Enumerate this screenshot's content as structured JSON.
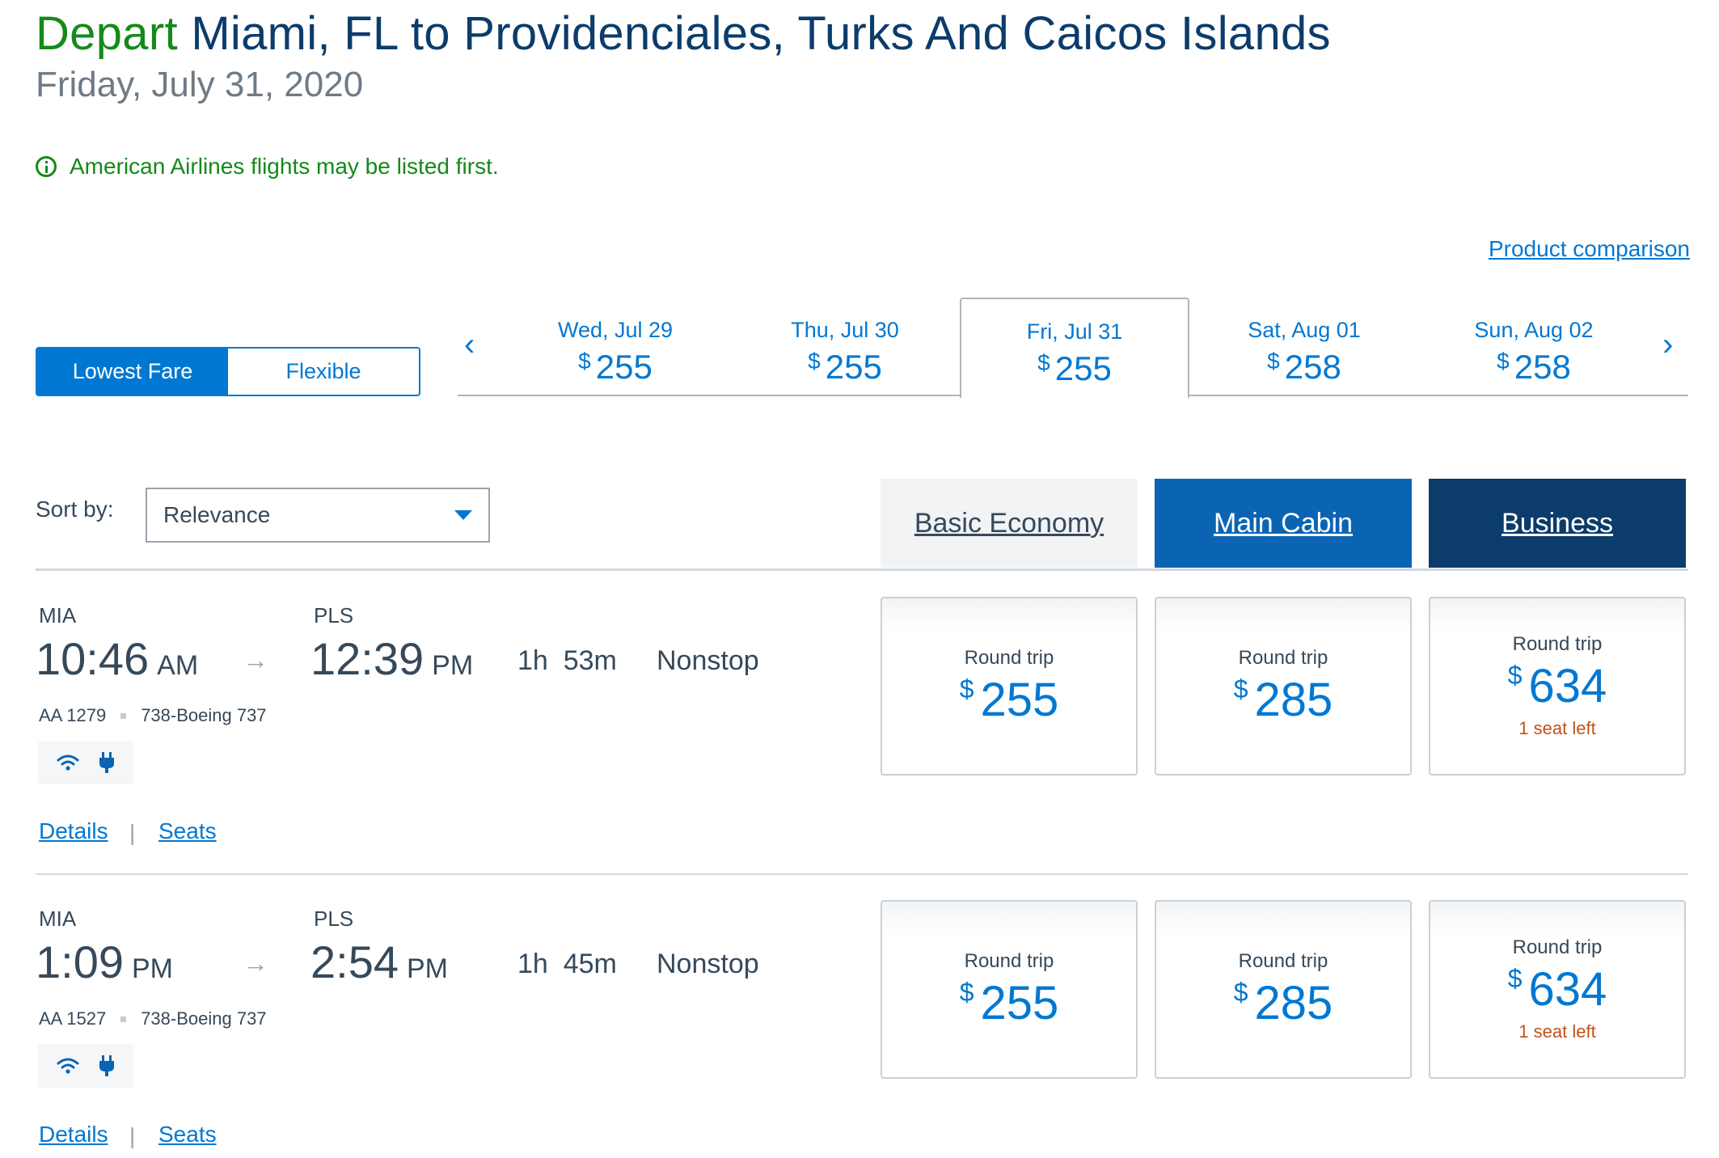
{
  "header": {
    "depart": "Depart",
    "route": "Miami, FL to Providenciales, Turks And Caicos Islands",
    "date": "Friday, July 31, 2020",
    "notice": "American Airlines flights may be listed first.",
    "product_comparison": "Product comparison"
  },
  "fare_toggle": {
    "lowest": "Lowest Fare",
    "flexible": "Flexible",
    "selected": "Lowest Fare"
  },
  "dates": [
    {
      "day": "Wed, Jul 29",
      "currency": "$",
      "price": "255"
    },
    {
      "day": "Thu, Jul 30",
      "currency": "$",
      "price": "255"
    },
    {
      "day": "Fri, Jul 31",
      "currency": "$",
      "price": "255"
    },
    {
      "day": "Sat, Aug 01",
      "currency": "$",
      "price": "258"
    },
    {
      "day": "Sun, Aug 02",
      "currency": "$",
      "price": "258"
    }
  ],
  "selected_date_index": 2,
  "nav": {
    "prev": "‹",
    "next": "›"
  },
  "sort": {
    "label": "Sort by:",
    "value": "Relevance"
  },
  "cabins": {
    "basic": "Basic Economy",
    "main": "Main Cabin",
    "business": "Business"
  },
  "flights": [
    {
      "origin": "MIA",
      "dep_time": "10:46",
      "dep_ampm": "AM",
      "dest": "PLS",
      "arr_time": "12:39",
      "arr_ampm": "PM",
      "duration_h": "1h",
      "duration_m": "53m",
      "stops": "Nonstop",
      "flight_no": "AA 1279",
      "aircraft": "738-Boeing 737",
      "details": "Details",
      "seats": "Seats",
      "separator": "|",
      "fares": [
        {
          "label": "Round trip",
          "currency": "$",
          "price": "255",
          "note": ""
        },
        {
          "label": "Round trip",
          "currency": "$",
          "price": "285",
          "note": ""
        },
        {
          "label": "Round trip",
          "currency": "$",
          "price": "634",
          "note": "1 seat left"
        }
      ]
    },
    {
      "origin": "MIA",
      "dep_time": "1:09",
      "dep_ampm": "PM",
      "dest": "PLS",
      "arr_time": "2:54",
      "arr_ampm": "PM",
      "duration_h": "1h",
      "duration_m": "45m",
      "stops": "Nonstop",
      "flight_no": "AA 1527",
      "aircraft": "738-Boeing 737",
      "details": "Details",
      "seats": "Seats",
      "separator": "|",
      "fares": [
        {
          "label": "Round trip",
          "currency": "$",
          "price": "255",
          "note": ""
        },
        {
          "label": "Round trip",
          "currency": "$",
          "price": "285",
          "note": ""
        },
        {
          "label": "Round trip",
          "currency": "$",
          "price": "634",
          "note": "1 seat left"
        }
      ]
    }
  ],
  "icons": {
    "wifi": "wifi-icon",
    "power": "power-plug-icon",
    "info": "info-icon"
  },
  "colors": {
    "accent": "#0078d2",
    "green": "#138a19",
    "navy": "#0b3c6b",
    "warning": "#c3501c"
  }
}
